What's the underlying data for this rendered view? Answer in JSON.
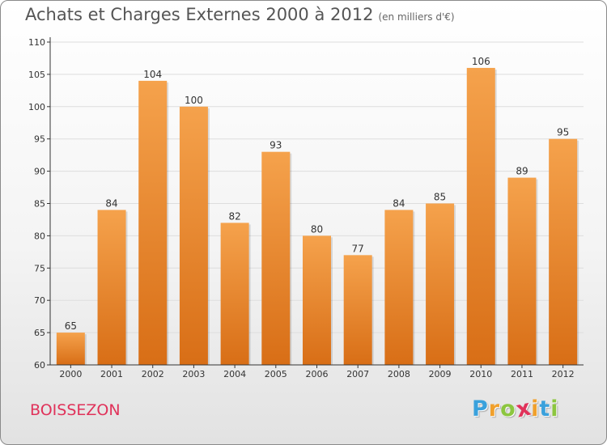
{
  "header": {
    "title": "Achats et Charges Externes 2000 à 2012",
    "subtitle": "(en milliers d'€)"
  },
  "footer": {
    "commune": "BOISSEZON",
    "logo_letters": [
      "P",
      "r",
      "o",
      "x",
      "i",
      "t",
      "i"
    ],
    "logo_colors": [
      "#3aa1dc",
      "#f0a02c",
      "#8cc63f",
      "#e0325a",
      "#f0a02c",
      "#3aa1dc",
      "#8cc63f"
    ]
  },
  "colors": {
    "bar_light": "#f5a24c",
    "bar_dark": "#d86e16",
    "axis": "#333333",
    "grid": "#dddddd",
    "title": "#555555",
    "commune": "#e0325a"
  },
  "chart_data": {
    "type": "bar",
    "title": "Achats et Charges Externes 2000 à 2012",
    "subtitle": "(en milliers d'€)",
    "categories": [
      "2000",
      "2001",
      "2002",
      "2003",
      "2004",
      "2005",
      "2006",
      "2007",
      "2008",
      "2009",
      "2010",
      "2011",
      "2012"
    ],
    "values": [
      65,
      84,
      104,
      100,
      82,
      93,
      80,
      77,
      84,
      85,
      106,
      89,
      95
    ],
    "ylim": [
      60,
      110
    ],
    "yticks": [
      60,
      65,
      70,
      75,
      80,
      85,
      90,
      95,
      100,
      105,
      110
    ],
    "grid": true,
    "data_labels": true
  }
}
